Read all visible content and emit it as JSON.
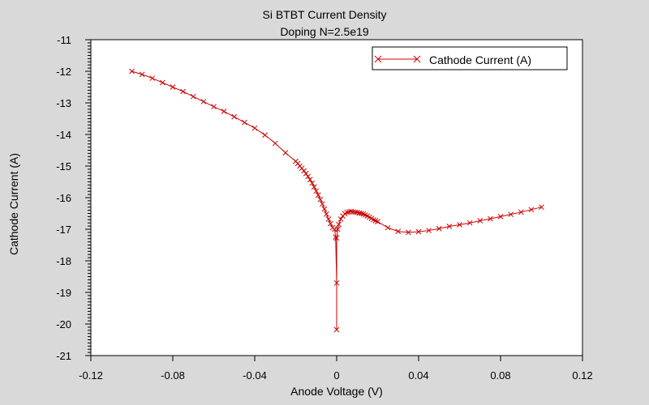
{
  "chart_data": {
    "type": "line",
    "title": "Si BTBT Current Density",
    "subtitle": "Doping N=2.5e19",
    "xlabel": "Anode Voltage (V)",
    "ylabel": "Cathode Current (A)",
    "xlim": [
      -0.12,
      0.12
    ],
    "ylim": [
      -21,
      -11
    ],
    "xticks": [
      -0.12,
      -0.08,
      -0.04,
      0,
      0.04,
      0.08,
      0.12
    ],
    "xtick_labels": [
      "-0.12",
      "-0.08",
      "-0.04",
      "0",
      "0.04",
      "0.08",
      "0.12"
    ],
    "yticks": [
      -21,
      -20,
      -19,
      -18,
      -17,
      -16,
      -15,
      -14,
      -13,
      -12,
      -11
    ],
    "ytick_labels": [
      "-21",
      "-20",
      "-19",
      "-18",
      "-17",
      "-16",
      "-15",
      "-14",
      "-13",
      "-12",
      "-11"
    ],
    "y_minor_ticks_per_major": 10,
    "grid": false,
    "legend_position": "top-right",
    "colors": {
      "series": "#cc0000",
      "plot_bg": "#ffffff",
      "page_bg": "#d9d9d9"
    },
    "series": [
      {
        "name": "Cathode Current (A)",
        "marker": "x",
        "x": [
          -0.1,
          -0.095,
          -0.09,
          -0.085,
          -0.08,
          -0.075,
          -0.07,
          -0.065,
          -0.06,
          -0.055,
          -0.05,
          -0.045,
          -0.04,
          -0.035,
          -0.03,
          -0.025,
          -0.02,
          -0.019,
          -0.018,
          -0.017,
          -0.016,
          -0.015,
          -0.014,
          -0.013,
          -0.012,
          -0.011,
          -0.01,
          -0.009,
          -0.008,
          -0.007,
          -0.006,
          -0.005,
          -0.004,
          -0.003,
          -0.002,
          -0.001,
          -0.0005,
          0,
          0,
          0,
          0.0005,
          0.001,
          0.002,
          0.003,
          0.004,
          0.005,
          0.006,
          0.007,
          0.008,
          0.009,
          0.01,
          0.011,
          0.012,
          0.013,
          0.014,
          0.015,
          0.016,
          0.017,
          0.018,
          0.019,
          0.02,
          0.025,
          0.03,
          0.035,
          0.04,
          0.045,
          0.05,
          0.055,
          0.06,
          0.065,
          0.07,
          0.075,
          0.08,
          0.085,
          0.09,
          0.095,
          0.1
        ],
        "y": [
          -12.0,
          -12.1,
          -12.22,
          -12.36,
          -12.5,
          -12.64,
          -12.8,
          -12.96,
          -13.12,
          -13.27,
          -13.44,
          -13.62,
          -13.8,
          -14.02,
          -14.28,
          -14.58,
          -14.85,
          -14.92,
          -15.0,
          -15.07,
          -15.15,
          -15.24,
          -15.33,
          -15.43,
          -15.54,
          -15.66,
          -15.79,
          -15.92,
          -16.06,
          -16.2,
          -16.36,
          -16.52,
          -16.68,
          -16.82,
          -16.95,
          -17.0,
          -17.25,
          -18.7,
          -20.18,
          -17.28,
          -17.0,
          -16.85,
          -16.68,
          -16.58,
          -16.51,
          -16.47,
          -16.45,
          -16.44,
          -16.45,
          -16.46,
          -16.47,
          -16.49,
          -16.5,
          -16.52,
          -16.55,
          -16.58,
          -16.62,
          -16.66,
          -16.7,
          -16.73,
          -16.76,
          -16.95,
          -17.07,
          -17.1,
          -17.08,
          -17.04,
          -16.98,
          -16.91,
          -16.86,
          -16.8,
          -16.73,
          -16.67,
          -16.6,
          -16.53,
          -16.46,
          -16.38,
          -16.3
        ]
      }
    ]
  }
}
